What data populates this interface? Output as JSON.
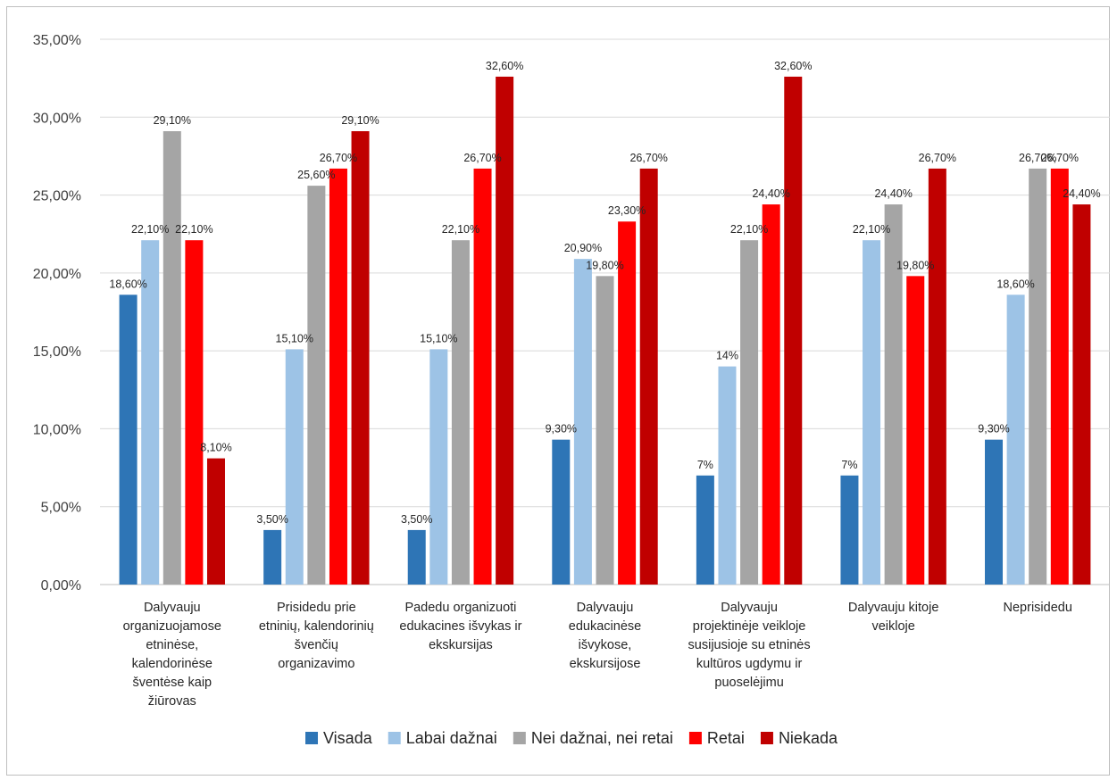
{
  "chart_data": {
    "type": "bar",
    "title": "",
    "xlabel": "",
    "ylabel": "",
    "ylim": [
      0,
      35
    ],
    "y_ticks": [
      "0,00%",
      "5,00%",
      "10,00%",
      "15,00%",
      "20,00%",
      "25,00%",
      "30,00%",
      "35,00%"
    ],
    "grid": true,
    "legend_position": "bottom",
    "categories": [
      [
        "Dalyvauju",
        "organizuojamose",
        "etninėse,",
        "kalendorinėse",
        "šventėse kaip",
        "žiūrovas"
      ],
      [
        "Prisidedu prie",
        "etninių, kalendorinių",
        "švenčių",
        "organizavimo"
      ],
      [
        "Padedu organizuoti",
        "edukacines išvykas ir",
        "ekskursijas"
      ],
      [
        "Dalyvauju",
        "edukacinėse",
        "išvykose,",
        "ekskursijose"
      ],
      [
        "Dalyvauju",
        "projektinėje veikloje",
        "susijusioje su etninės",
        "kultūros ugdymu ir",
        "puoselėjimu"
      ],
      [
        "Dalyvauju kitoje",
        "veikloje"
      ],
      [
        "Neprisidedu"
      ]
    ],
    "series": [
      {
        "name": "Visada",
        "color": "#2e75b6",
        "values": [
          18.6,
          3.5,
          3.5,
          9.3,
          7,
          7,
          9.3
        ],
        "labels": [
          "18,60%",
          "3,50%",
          "3,50%",
          "9,30%",
          "7%",
          "7%",
          "9,30%"
        ]
      },
      {
        "name": "Labai dažnai",
        "color": "#9dc3e6",
        "values": [
          22.1,
          15.1,
          15.1,
          20.9,
          14,
          22.1,
          18.6
        ],
        "labels": [
          "22,10%",
          "15,10%",
          "15,10%",
          "20,90%",
          "14%",
          "22,10%",
          "18,60%"
        ]
      },
      {
        "name": "Nei dažnai, nei retai",
        "color": "#a5a5a5",
        "values": [
          29.1,
          25.6,
          22.1,
          19.8,
          22.1,
          24.4,
          26.7
        ],
        "labels": [
          "29,10%",
          "25,60%",
          "22,10%",
          "19,80%",
          "22,10%",
          "24,40%",
          "26,70%"
        ]
      },
      {
        "name": "Retai",
        "color": "#ff0000",
        "values": [
          22.1,
          26.7,
          26.7,
          23.3,
          24.4,
          19.8,
          26.7
        ],
        "labels": [
          "22,10%",
          "26,70%",
          "26,70%",
          "23,30%",
          "24,40%",
          "19,80%",
          "26,70%"
        ]
      },
      {
        "name": "Niekada",
        "color": "#c00000",
        "values": [
          8.1,
          29.1,
          32.6,
          26.7,
          32.6,
          26.7,
          24.4
        ],
        "labels": [
          "8,10%",
          "29,10%",
          "32,60%",
          "26,70%",
          "32,60%",
          "26,70%",
          "24,40%"
        ]
      }
    ]
  }
}
